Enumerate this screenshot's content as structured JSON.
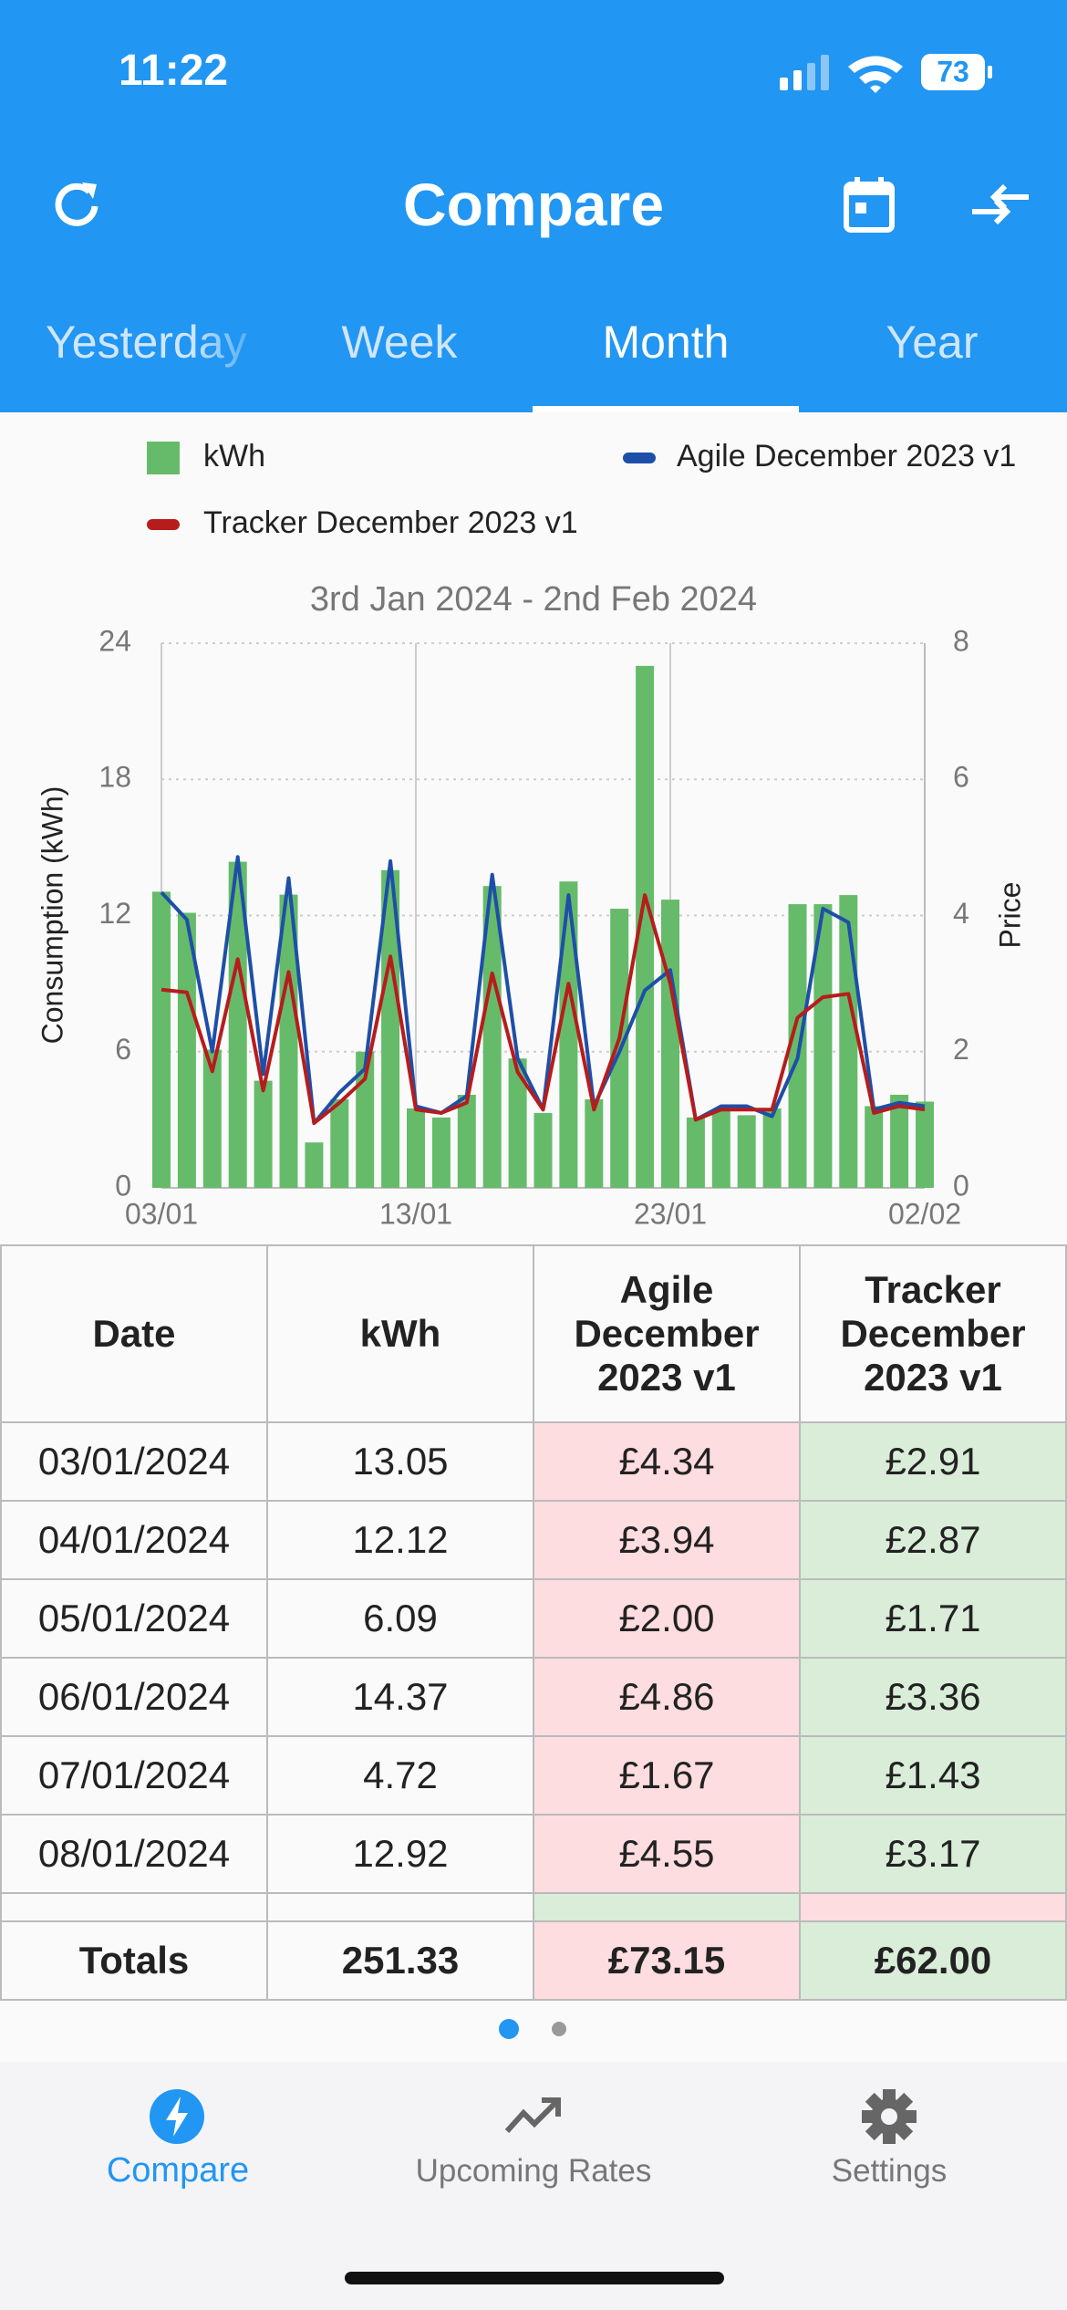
{
  "status": {
    "time": "11:22",
    "battery": "73"
  },
  "header": {
    "title": "Compare",
    "tabs": [
      "Yesterday",
      "Week",
      "Month",
      "Year"
    ]
  },
  "chart_data": {
    "type": "bar",
    "subtitle": "3rd Jan 2024 - 2nd Feb 2024",
    "y_label": "Consumption (kWh)",
    "y2_label": "Price",
    "categories": [
      "03/01",
      null,
      null,
      null,
      null,
      null,
      null,
      null,
      null,
      null,
      "13/01",
      null,
      null,
      null,
      null,
      null,
      null,
      null,
      null,
      null,
      "23/01",
      null,
      null,
      null,
      null,
      null,
      null,
      null,
      null,
      null,
      "02/02"
    ],
    "ylim": [
      0,
      24
    ],
    "yticks": [
      0,
      6,
      12,
      18,
      24
    ],
    "y2lim": [
      0,
      8
    ],
    "y2ticks": [
      0,
      2,
      4,
      6,
      8
    ],
    "grid": true,
    "series": [
      {
        "name": "kWh",
        "color": "#66bb6a",
        "values": [
          13.05,
          12.12,
          6.09,
          14.37,
          4.72,
          12.92,
          2.0,
          3.9,
          6.0,
          14.0,
          3.5,
          3.1,
          4.1,
          13.3,
          5.7,
          3.3,
          13.5,
          3.9,
          12.3,
          23.0,
          12.7,
          3.1,
          3.4,
          3.2,
          3.5,
          12.5,
          12.5,
          12.9,
          3.6,
          4.1,
          3.8
        ]
      },
      {
        "name": "Agile December 2023 v1",
        "color": "#1e4fa8",
        "axis": "y2",
        "values": [
          4.34,
          3.94,
          2.0,
          4.86,
          1.67,
          4.55,
          0.95,
          1.4,
          1.75,
          4.8,
          1.2,
          1.1,
          1.35,
          4.6,
          1.9,
          1.15,
          4.3,
          1.2,
          2.0,
          2.9,
          3.2,
          1.0,
          1.2,
          1.2,
          1.05,
          1.9,
          4.1,
          3.9,
          1.15,
          1.25,
          1.2
        ]
      },
      {
        "name": "Tracker December 2023 v1",
        "color": "#b71c1c",
        "axis": "y2",
        "values": [
          2.91,
          2.87,
          1.71,
          3.36,
          1.43,
          3.17,
          0.95,
          1.25,
          1.6,
          3.4,
          1.15,
          1.1,
          1.25,
          3.15,
          1.7,
          1.15,
          3.0,
          1.15,
          2.2,
          4.3,
          3.0,
          1.0,
          1.15,
          1.15,
          1.15,
          2.5,
          2.8,
          2.85,
          1.1,
          1.2,
          1.15
        ]
      }
    ]
  },
  "table": {
    "headers": [
      "Date",
      "kWh",
      "Agile December 2023 v1",
      "Tracker December 2023 v1"
    ],
    "rows": [
      [
        "03/01/2024",
        "13.05",
        "£4.34",
        "£2.91"
      ],
      [
        "04/01/2024",
        "12.12",
        "£3.94",
        "£2.87"
      ],
      [
        "05/01/2024",
        "6.09",
        "£2.00",
        "£1.71"
      ],
      [
        "06/01/2024",
        "14.37",
        "£4.86",
        "£3.36"
      ],
      [
        "07/01/2024",
        "4.72",
        "£1.67",
        "£1.43"
      ],
      [
        "08/01/2024",
        "12.92",
        "£4.55",
        "£3.17"
      ]
    ],
    "totals": [
      "Totals",
      "251.33",
      "£73.15",
      "£62.00"
    ]
  },
  "nav": [
    "Compare",
    "Upcoming Rates",
    "Settings"
  ]
}
